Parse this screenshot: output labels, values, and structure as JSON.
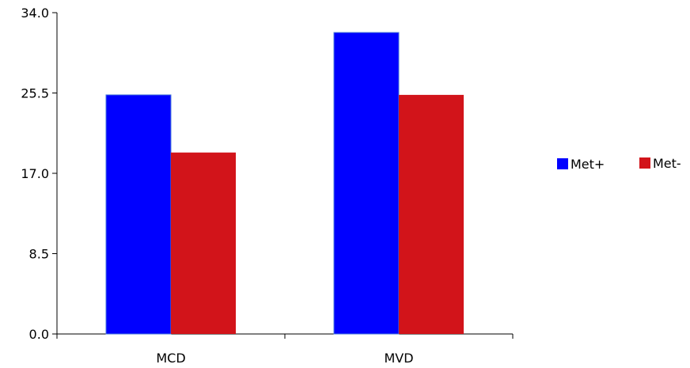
{
  "chart_data": {
    "type": "bar",
    "categories": [
      "MCD",
      "MVD"
    ],
    "series": [
      {
        "name": "Met+",
        "values": [
          25.3,
          31.9
        ]
      },
      {
        "name": "Met-",
        "values": [
          19.2,
          25.3
        ]
      }
    ],
    "colors": {
      "Met+": "#0000ff",
      "Met-": "#d2141a"
    },
    "ylim": [
      0,
      34
    ],
    "yticks": [
      "0.0",
      "8.5",
      "17.0",
      "25.5",
      "34.0"
    ],
    "ytick_values": [
      0,
      8.5,
      17,
      25.5,
      34
    ],
    "title": "",
    "xlabel": "",
    "ylabel": "",
    "grid": false,
    "legend_position": "right"
  }
}
